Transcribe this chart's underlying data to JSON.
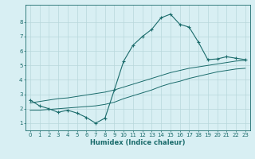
{
  "xlabel": "Humidex (Indice chaleur)",
  "bg_color": "#d8eff3",
  "line_color": "#1a6b6b",
  "xlim": [
    -0.5,
    23.5
  ],
  "ylim": [
    0.5,
    9.2
  ],
  "xticks": [
    0,
    1,
    2,
    3,
    4,
    5,
    6,
    7,
    8,
    9,
    10,
    11,
    12,
    13,
    14,
    15,
    16,
    17,
    18,
    19,
    20,
    21,
    22,
    23
  ],
  "yticks": [
    1,
    2,
    3,
    4,
    5,
    6,
    7,
    8
  ],
  "grid_color": "#b8d8dc",
  "line1_x": [
    0,
    1,
    2,
    3,
    4,
    5,
    6,
    7,
    8,
    9,
    10,
    11,
    12,
    13,
    14,
    15,
    16,
    17,
    18,
    19,
    20,
    21,
    22,
    23
  ],
  "line1_y": [
    2.6,
    2.2,
    2.0,
    1.75,
    1.9,
    1.7,
    1.4,
    1.0,
    1.35,
    3.3,
    5.3,
    6.4,
    7.0,
    7.5,
    8.3,
    8.55,
    7.85,
    7.65,
    6.6,
    5.4,
    5.45,
    5.6,
    5.5,
    5.4
  ],
  "line2_x": [
    0,
    1,
    2,
    3,
    4,
    5,
    6,
    7,
    8,
    9,
    10,
    11,
    12,
    13,
    14,
    15,
    16,
    17,
    18,
    19,
    20,
    21,
    22,
    23
  ],
  "line2_y": [
    2.4,
    2.5,
    2.6,
    2.7,
    2.75,
    2.85,
    2.95,
    3.05,
    3.15,
    3.3,
    3.5,
    3.7,
    3.9,
    4.1,
    4.3,
    4.5,
    4.65,
    4.8,
    4.9,
    5.0,
    5.1,
    5.2,
    5.3,
    5.35
  ],
  "line3_x": [
    0,
    1,
    2,
    3,
    4,
    5,
    6,
    7,
    8,
    9,
    10,
    11,
    12,
    13,
    14,
    15,
    16,
    17,
    18,
    19,
    20,
    21,
    22,
    23
  ],
  "line3_y": [
    1.9,
    1.9,
    1.95,
    2.0,
    2.05,
    2.1,
    2.15,
    2.2,
    2.3,
    2.45,
    2.7,
    2.9,
    3.1,
    3.3,
    3.55,
    3.75,
    3.9,
    4.1,
    4.25,
    4.4,
    4.55,
    4.65,
    4.75,
    4.8
  ]
}
